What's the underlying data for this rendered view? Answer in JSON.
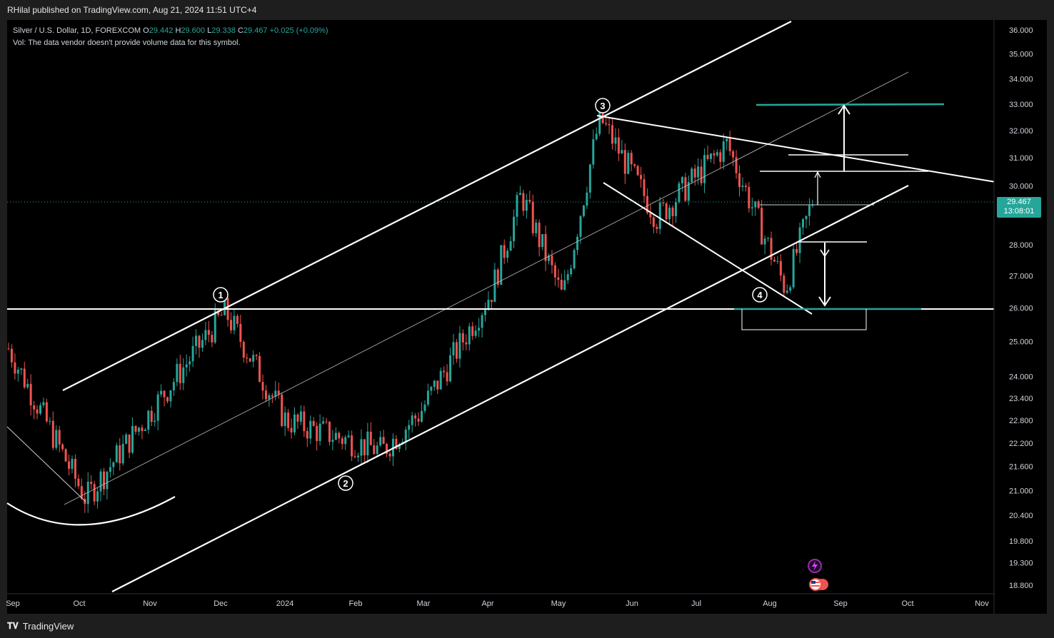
{
  "header": {
    "published": "RHilal published on TradingView.com, Aug 21, 2024 11:51 UTC+4"
  },
  "legend": {
    "symbol": "Silver / U.S. Dollar, 1D, FOREXCOM",
    "o_label": "O",
    "o_value": "29.442",
    "h_label": "H",
    "h_value": "29.600",
    "l_label": "L",
    "l_value": "29.338",
    "c_label": "C",
    "c_value": "29.467",
    "change": "+0.025 (+0.09%)",
    "vol_note": "Vol: The data vendor doesn't provide volume data for this symbol."
  },
  "last_price": {
    "value": "29.467",
    "countdown": "13:08:01"
  },
  "footer": {
    "brand": "TradingView"
  },
  "colors": {
    "up": "#26a69a",
    "down": "#ef5350",
    "background": "#000000",
    "accent": "#26a69a"
  },
  "annotations": {
    "wave_labels": [
      "1",
      "2",
      "3",
      "4"
    ]
  },
  "chart_data": {
    "type": "candlestick",
    "title": "Silver / U.S. Dollar, 1D, FOREXCOM",
    "y_axis": {
      "ticks": [
        36.0,
        35.0,
        34.0,
        33.0,
        32.0,
        31.0,
        30.0,
        28.0,
        27.0,
        26.0,
        25.0,
        24.0,
        23.4,
        22.8,
        22.2,
        21.6,
        21.0,
        20.4,
        19.8,
        19.3,
        18.8
      ],
      "tick_labels": [
        "36.000",
        "35.000",
        "34.000",
        "33.000",
        "32.000",
        "31.000",
        "30.000",
        "28.000",
        "27.000",
        "26.000",
        "25.000",
        "24.000",
        "23.400",
        "22.800",
        "22.200",
        "21.600",
        "21.000",
        "20.400",
        "19.800",
        "19.300",
        "18.800"
      ],
      "scale": "log",
      "ylim": [
        18.6,
        36.4
      ]
    },
    "x_axis": {
      "tick_labels": [
        "Sep",
        "Oct",
        "Nov",
        "Dec",
        "2024",
        "Feb",
        "Mar",
        "Apr",
        "May",
        "Jun",
        "Jul",
        "Aug",
        "Sep",
        "Oct",
        "Nov"
      ]
    },
    "key_points": [
      {
        "date": "Sep 2023",
        "price": 24.8
      },
      {
        "date": "Oct 2023",
        "price": 20.8
      },
      {
        "date": "Dec 2023",
        "price": 25.9
      },
      {
        "date": "Jan 2024",
        "price": 22.8
      },
      {
        "date": "Feb 2024",
        "price": 22.0
      },
      {
        "date": "Mar 2024",
        "price": 23.0
      },
      {
        "date": "Apr 2024",
        "price": 26.5
      },
      {
        "date": "Apr 2024",
        "price": 29.7
      },
      {
        "date": "May 2024",
        "price": 26.3
      },
      {
        "date": "May 2024",
        "price": 32.5
      },
      {
        "date": "Jun 2024",
        "price": 28.9
      },
      {
        "date": "Jul 2024",
        "price": 31.5
      },
      {
        "date": "Aug 2024",
        "price": 26.6
      },
      {
        "date": "Aug 2024",
        "price": 29.5
      }
    ],
    "levels": [
      {
        "price": 26.0,
        "kind": "horizontal support"
      },
      {
        "price": 33.0,
        "kind": "target"
      },
      {
        "price": 31.1,
        "kind": "level"
      },
      {
        "price": 30.5,
        "kind": "level"
      },
      {
        "price": 28.1,
        "kind": "level"
      }
    ],
    "last_close": 29.467,
    "grid": false,
    "legend": "top-left"
  }
}
